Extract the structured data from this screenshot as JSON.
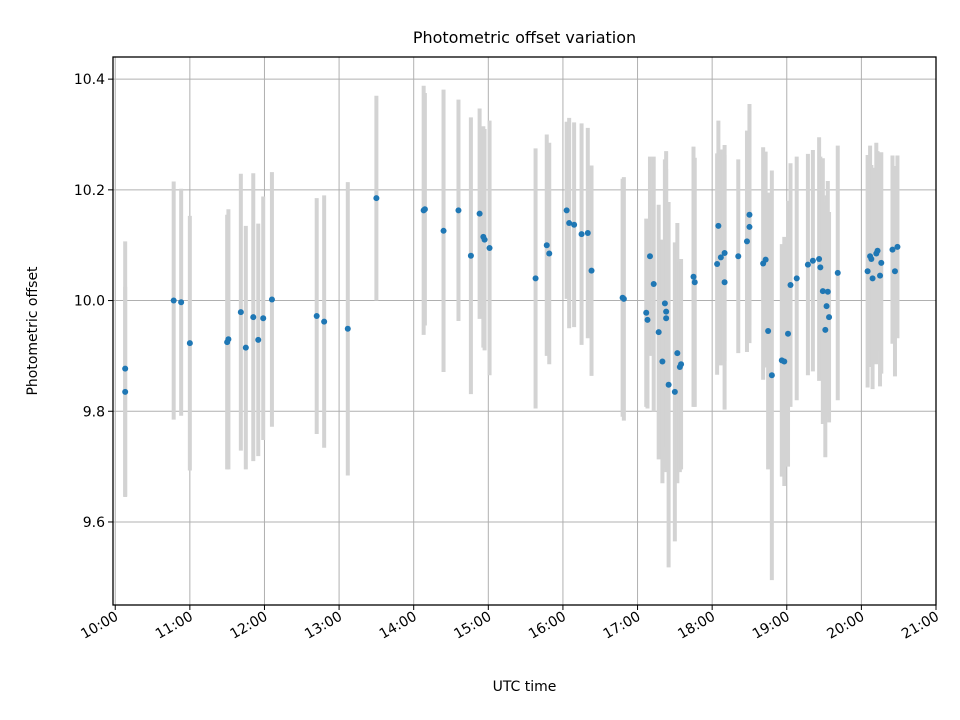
{
  "chart_data": {
    "type": "scatter",
    "title": "Photometric offset variation",
    "xlabel": "UTC time",
    "ylabel": "Photometric offset",
    "x_unit": "hours UTC",
    "xlim": [
      9.97,
      21.0
    ],
    "ylim": [
      9.45,
      10.44
    ],
    "x_ticks": [
      "10:00",
      "11:00",
      "12:00",
      "13:00",
      "14:00",
      "15:00",
      "16:00",
      "17:00",
      "18:00",
      "19:00",
      "20:00",
      "21:00"
    ],
    "y_ticks": [
      "9.6",
      "9.8",
      "10.0",
      "10.2",
      "10.4"
    ],
    "grid": true,
    "colors": {
      "point": "#1f77b4",
      "errorbar": "#d3d3d3",
      "grid": "#b0b0b0"
    },
    "points": [
      {
        "x": "10:08",
        "y": 9.877,
        "err": 0.23
      },
      {
        "x": "10:08",
        "y": 9.835,
        "err": 0.19
      },
      {
        "x": "10:47",
        "y": 10.0,
        "err": 0.215
      },
      {
        "x": "10:53",
        "y": 9.997,
        "err": 0.205
      },
      {
        "x": "11:00",
        "y": 9.923,
        "err": 0.23
      },
      {
        "x": "11:30",
        "y": 9.925,
        "err": 0.23
      },
      {
        "x": "11:31",
        "y": 9.93,
        "err": 0.235
      },
      {
        "x": "11:41",
        "y": 9.979,
        "err": 0.25
      },
      {
        "x": "11:45",
        "y": 9.915,
        "err": 0.22
      },
      {
        "x": "11:51",
        "y": 9.97,
        "err": 0.26
      },
      {
        "x": "11:55",
        "y": 9.929,
        "err": 0.21
      },
      {
        "x": "11:59",
        "y": 9.968,
        "err": 0.22
      },
      {
        "x": "12:06",
        "y": 10.002,
        "err": 0.23
      },
      {
        "x": "12:42",
        "y": 9.972,
        "err": 0.213
      },
      {
        "x": "12:48",
        "y": 9.962,
        "err": 0.228
      },
      {
        "x": "13:07",
        "y": 9.949,
        "err": 0.265
      },
      {
        "x": "13:30",
        "y": 10.185,
        "err": 0.185
      },
      {
        "x": "14:08",
        "y": 10.163,
        "err": 0.225
      },
      {
        "x": "14:09",
        "y": 10.165,
        "err": 0.21
      },
      {
        "x": "14:24",
        "y": 10.126,
        "err": 0.255
      },
      {
        "x": "14:36",
        "y": 10.163,
        "err": 0.2
      },
      {
        "x": "14:46",
        "y": 10.081,
        "err": 0.25
      },
      {
        "x": "14:53",
        "y": 10.157,
        "err": 0.19
      },
      {
        "x": "14:56",
        "y": 10.115,
        "err": 0.2
      },
      {
        "x": "14:57",
        "y": 10.11,
        "err": 0.2
      },
      {
        "x": "15:01",
        "y": 10.095,
        "err": 0.23
      },
      {
        "x": "15:38",
        "y": 10.04,
        "err": 0.235
      },
      {
        "x": "15:47",
        "y": 10.1,
        "err": 0.2
      },
      {
        "x": "15:49",
        "y": 10.085,
        "err": 0.2
      },
      {
        "x": "16:03",
        "y": 10.163,
        "err": 0.16
      },
      {
        "x": "16:05",
        "y": 10.14,
        "err": 0.19
      },
      {
        "x": "16:09",
        "y": 10.137,
        "err": 0.185
      },
      {
        "x": "16:15",
        "y": 10.12,
        "err": 0.2
      },
      {
        "x": "16:20",
        "y": 10.122,
        "err": 0.19
      },
      {
        "x": "16:23",
        "y": 10.054,
        "err": 0.19
      },
      {
        "x": "16:48",
        "y": 10.005,
        "err": 0.215
      },
      {
        "x": "16:49",
        "y": 10.003,
        "err": 0.22
      },
      {
        "x": "17:07",
        "y": 9.978,
        "err": 0.17
      },
      {
        "x": "17:08",
        "y": 9.965,
        "err": 0.16
      },
      {
        "x": "17:10",
        "y": 10.08,
        "err": 0.18
      },
      {
        "x": "17:13",
        "y": 10.03,
        "err": 0.23
      },
      {
        "x": "17:17",
        "y": 9.943,
        "err": 0.23
      },
      {
        "x": "17:20",
        "y": 9.89,
        "err": 0.22
      },
      {
        "x": "17:22",
        "y": 9.995,
        "err": 0.26
      },
      {
        "x": "17:23",
        "y": 9.98,
        "err": 0.29
      },
      {
        "x": "17:23",
        "y": 9.968,
        "err": 0.27
      },
      {
        "x": "17:25",
        "y": 9.848,
        "err": 0.33
      },
      {
        "x": "17:30",
        "y": 9.835,
        "err": 0.27
      },
      {
        "x": "17:32",
        "y": 9.905,
        "err": 0.235
      },
      {
        "x": "17:34",
        "y": 9.88,
        "err": 0.19
      },
      {
        "x": "17:35",
        "y": 9.885,
        "err": 0.19
      },
      {
        "x": "17:45",
        "y": 10.043,
        "err": 0.235
      },
      {
        "x": "17:46",
        "y": 10.033,
        "err": 0.225
      },
      {
        "x": "18:04",
        "y": 10.066,
        "err": 0.2
      },
      {
        "x": "18:05",
        "y": 10.135,
        "err": 0.19
      },
      {
        "x": "18:07",
        "y": 10.078,
        "err": 0.195
      },
      {
        "x": "18:10",
        "y": 10.086,
        "err": 0.195
      },
      {
        "x": "18:10",
        "y": 10.033,
        "err": 0.23
      },
      {
        "x": "18:21",
        "y": 10.08,
        "err": 0.175
      },
      {
        "x": "18:28",
        "y": 10.107,
        "err": 0.2
      },
      {
        "x": "18:30",
        "y": 10.133,
        "err": 0.21
      },
      {
        "x": "18:30",
        "y": 10.155,
        "err": 0.2
      },
      {
        "x": "18:41",
        "y": 10.067,
        "err": 0.21
      },
      {
        "x": "18:43",
        "y": 10.074,
        "err": 0.195
      },
      {
        "x": "18:45",
        "y": 9.945,
        "err": 0.25
      },
      {
        "x": "18:48",
        "y": 9.865,
        "err": 0.37
      },
      {
        "x": "18:56",
        "y": 9.892,
        "err": 0.21
      },
      {
        "x": "18:58",
        "y": 9.89,
        "err": 0.225
      },
      {
        "x": "19:01",
        "y": 9.94,
        "err": 0.24
      },
      {
        "x": "19:03",
        "y": 10.028,
        "err": 0.22
      },
      {
        "x": "19:08",
        "y": 10.04,
        "err": 0.22
      },
      {
        "x": "19:17",
        "y": 10.065,
        "err": 0.2
      },
      {
        "x": "19:21",
        "y": 10.072,
        "err": 0.2
      },
      {
        "x": "19:26",
        "y": 10.075,
        "err": 0.22
      },
      {
        "x": "19:27",
        "y": 10.06,
        "err": 0.2
      },
      {
        "x": "19:29",
        "y": 10.017,
        "err": 0.24
      },
      {
        "x": "19:31",
        "y": 9.947,
        "err": 0.23
      },
      {
        "x": "19:32",
        "y": 9.99,
        "err": 0.2
      },
      {
        "x": "19:33",
        "y": 10.016,
        "err": 0.2
      },
      {
        "x": "19:34",
        "y": 9.97,
        "err": 0.19
      },
      {
        "x": "19:41",
        "y": 10.05,
        "err": 0.23
      },
      {
        "x": "20:05",
        "y": 10.053,
        "err": 0.21
      },
      {
        "x": "20:07",
        "y": 10.08,
        "err": 0.2
      },
      {
        "x": "20:08",
        "y": 10.075,
        "err": 0.17
      },
      {
        "x": "20:09",
        "y": 10.04,
        "err": 0.2
      },
      {
        "x": "20:12",
        "y": 10.085,
        "err": 0.2
      },
      {
        "x": "20:13",
        "y": 10.09,
        "err": 0.18
      },
      {
        "x": "20:15",
        "y": 10.045,
        "err": 0.2
      },
      {
        "x": "20:16",
        "y": 10.068,
        "err": 0.2
      },
      {
        "x": "20:25",
        "y": 10.092,
        "err": 0.17
      },
      {
        "x": "20:27",
        "y": 10.053,
        "err": 0.19
      },
      {
        "x": "20:29",
        "y": 10.097,
        "err": 0.165
      }
    ]
  }
}
